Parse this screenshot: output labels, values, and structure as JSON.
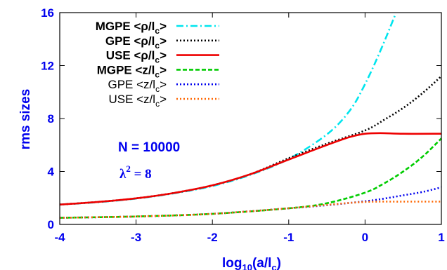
{
  "chart_data": {
    "type": "line",
    "xlabel": {
      "main": "log",
      "sub1": "10",
      "mid": "(a/l",
      "sub2": "c",
      "end": ")"
    },
    "ylabel": "rms sizes",
    "xlim": [
      -4,
      1
    ],
    "ylim": [
      0,
      16
    ],
    "xticks": [
      -4,
      -3,
      -2,
      -1,
      0,
      1
    ],
    "yticks": [
      0,
      4,
      8,
      12,
      16
    ],
    "legend_position": "top-left",
    "annotations": {
      "n_text": "N = 10000",
      "lambda_symbol": "λ",
      "lambda_exp": "2",
      "lambda_rest": " = 8"
    },
    "series": [
      {
        "name": "MGPE <ρ/lc>",
        "label_main": "MGPE <ρ/l",
        "label_sub": "c",
        "label_end": ">",
        "color": "#00e5ee",
        "dash": "10,4,2,4",
        "bold": true,
        "x": [
          -4,
          -3.5,
          -3,
          -2.5,
          -2,
          -1.5,
          -1,
          -0.5,
          -0.2,
          0,
          0.2,
          0.4
        ],
        "y": [
          1.5,
          1.68,
          1.95,
          2.35,
          2.9,
          3.75,
          4.95,
          6.8,
          8.6,
          10.6,
          13.1,
          15.9
        ]
      },
      {
        "name": "GPE <ρ/lc>",
        "label_main": "GPE <ρ/l",
        "label_sub": "c",
        "label_end": ">",
        "color": "#000000",
        "dash": "2,3",
        "bold": true,
        "x": [
          -4,
          -3.5,
          -3,
          -2.5,
          -2,
          -1.5,
          -1,
          -0.5,
          0,
          0.25,
          0.5,
          0.75,
          1
        ],
        "y": [
          1.5,
          1.7,
          1.97,
          2.38,
          2.95,
          3.8,
          5.0,
          6.1,
          7.1,
          7.9,
          8.8,
          9.9,
          11.2
        ]
      },
      {
        "name": "USE <ρ/lc>",
        "label_main": "USE <ρ/l",
        "label_sub": "c",
        "label_end": ">",
        "color": "#ee0000",
        "dash": "",
        "bold": true,
        "x": [
          -4,
          -3.5,
          -3,
          -2.5,
          -2,
          -1.5,
          -1,
          -0.5,
          -0.2,
          0,
          0.2,
          0.5,
          1
        ],
        "y": [
          1.5,
          1.7,
          1.97,
          2.38,
          2.95,
          3.8,
          4.9,
          6.0,
          6.6,
          6.85,
          6.9,
          6.85,
          6.85
        ]
      },
      {
        "name": "MGPE <z/lc>",
        "label_main": "MGPE <z/l",
        "label_sub": "c",
        "label_end": ">",
        "color": "#00cc00",
        "dash": "6,3",
        "bold": true,
        "x": [
          -4,
          -3,
          -2,
          -1,
          -0.5,
          0,
          0.25,
          0.5,
          0.75,
          1
        ],
        "y": [
          0.5,
          0.6,
          0.8,
          1.22,
          1.6,
          2.4,
          3.1,
          4.0,
          5.1,
          6.5
        ]
      },
      {
        "name": "GPE <z/lc>",
        "label_main": "GPE <z/l",
        "label_sub": "c",
        "label_end": ">",
        "color": "#0000ee",
        "dash": "2,3",
        "bold": false,
        "x": [
          -4,
          -3,
          -2,
          -1,
          -0.5,
          0,
          0.25,
          0.5,
          0.75,
          1
        ],
        "y": [
          0.5,
          0.6,
          0.8,
          1.22,
          1.45,
          1.75,
          1.95,
          2.2,
          2.45,
          2.8
        ]
      },
      {
        "name": "USE <z/lc>",
        "label_main": "USE <z/l",
        "label_sub": "c",
        "label_end": ">",
        "color": "#ff6600",
        "dash": "2,3",
        "bold": false,
        "x": [
          -4,
          -3,
          -2,
          -1,
          -0.5,
          0,
          0.5,
          1
        ],
        "y": [
          0.5,
          0.6,
          0.8,
          1.22,
          1.48,
          1.7,
          1.72,
          1.72
        ]
      }
    ]
  }
}
